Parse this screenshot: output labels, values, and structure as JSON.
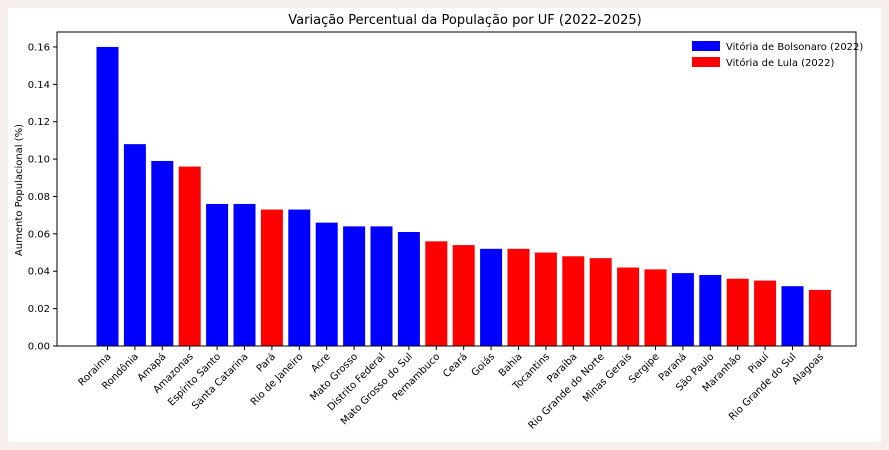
{
  "chart_data": {
    "type": "bar",
    "title": "Variação Percentual da População por UF (2022–2025)",
    "xlabel": "",
    "ylabel": "Aumento Populacional (%)",
    "ylim": [
      0,
      0.168
    ],
    "yticks": [
      0.0,
      0.02,
      0.04,
      0.06,
      0.08,
      0.1,
      0.12,
      0.14,
      0.16
    ],
    "ytick_labels": [
      "0.00",
      "0.02",
      "0.04",
      "0.06",
      "0.08",
      "0.10",
      "0.12",
      "0.14",
      "0.16"
    ],
    "grid": false,
    "legend_position": "top-right",
    "legend": [
      {
        "label": "Vitória de Bolsonaro (2022)",
        "color": "#0000ff"
      },
      {
        "label": "Vitória de Lula (2022)",
        "color": "#ff0000"
      }
    ],
    "categories": [
      "Roraima",
      "Rondônia",
      "Amapá",
      "Amazonas",
      "Espírito Santo",
      "Santa Catarina",
      "Pará",
      "Rio de Janeiro",
      "Acre",
      "Mato Grosso",
      "Distrito Federal",
      "Mato Grosso do Sul",
      "Pernambuco",
      "Ceará",
      "Goiás",
      "Bahia",
      "Tocantins",
      "Paraíba",
      "Rio Grande do Norte",
      "Minas Gerais",
      "Sergipe",
      "Paraná",
      "São Paulo",
      "Maranhão",
      "Piauí",
      "Rio Grande do Sul",
      "Alagoas"
    ],
    "values": [
      0.16,
      0.108,
      0.099,
      0.096,
      0.076,
      0.076,
      0.073,
      0.073,
      0.066,
      0.064,
      0.064,
      0.061,
      0.056,
      0.054,
      0.052,
      0.052,
      0.05,
      0.048,
      0.047,
      0.042,
      0.041,
      0.039,
      0.038,
      0.036,
      0.035,
      0.032,
      0.03
    ],
    "winner": [
      "Bolsonaro",
      "Bolsonaro",
      "Bolsonaro",
      "Lula",
      "Bolsonaro",
      "Bolsonaro",
      "Lula",
      "Bolsonaro",
      "Bolsonaro",
      "Bolsonaro",
      "Bolsonaro",
      "Bolsonaro",
      "Lula",
      "Lula",
      "Bolsonaro",
      "Lula",
      "Lula",
      "Lula",
      "Lula",
      "Lula",
      "Lula",
      "Bolsonaro",
      "Bolsonaro",
      "Lula",
      "Lula",
      "Bolsonaro",
      "Lula"
    ],
    "colors": {
      "Bolsonaro": "#0000ff",
      "Lula": "#ff0000"
    }
  }
}
